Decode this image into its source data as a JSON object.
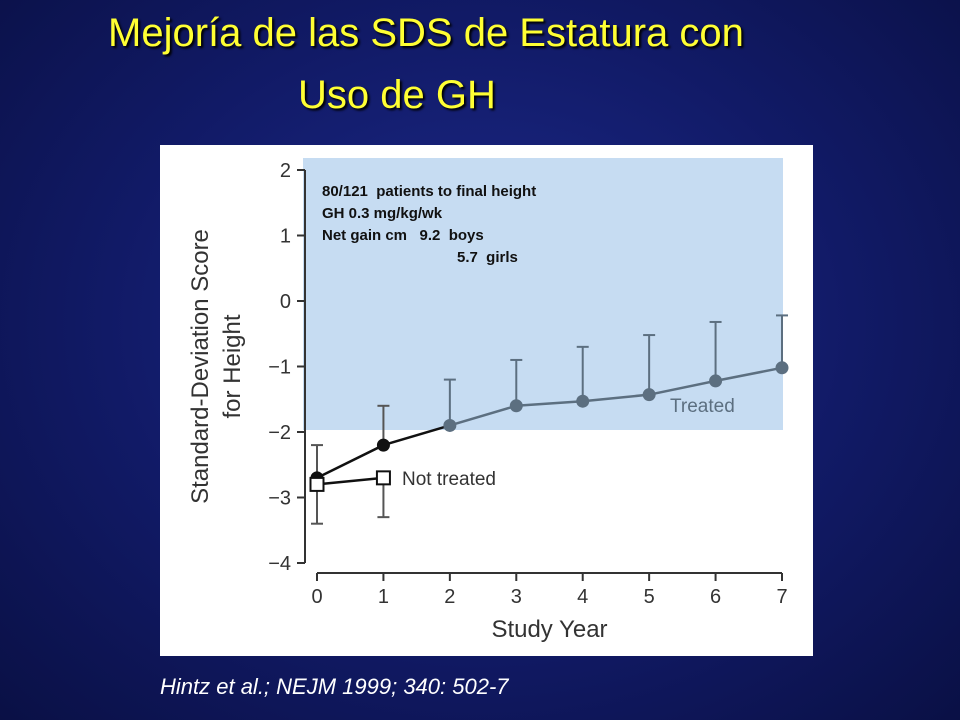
{
  "title": {
    "line1": "Mejoría de las SDS de Estatura con",
    "line2": "Uso de GH"
  },
  "note": {
    "line1": "80/121  patients to final height",
    "line2": "GH 0.3 mg/kg/wk",
    "line3": "Net gain cm   9.2  boys",
    "line4": "5.7  girls"
  },
  "citation": "Hintz et al.; NEJM 1999; 340: 502-7",
  "colors": {
    "background": "#111a66",
    "title": "#ffff33",
    "highlight": "#c6dcf2",
    "treated": "#5c6f80",
    "not_treated": "#000000"
  },
  "chart_data": {
    "type": "line",
    "xlabel": "Study Year",
    "ylabel_line1": "Standard-Deviation Score",
    "ylabel_line2": "for Height",
    "x_ticks": [
      "0",
      "1",
      "2",
      "3",
      "4",
      "5",
      "6",
      "7"
    ],
    "y_ticks": [
      "2",
      "1",
      "0",
      "−1",
      "−2",
      "−3",
      "−4"
    ],
    "xlim": [
      0,
      7
    ],
    "ylim": [
      -4,
      2
    ],
    "grid": false,
    "series": [
      {
        "name": "Treated",
        "marker": "filled-circle",
        "x": [
          0,
          1,
          2,
          3,
          4,
          5,
          6,
          7
        ],
        "y": [
          -2.7,
          -2.2,
          -1.9,
          -1.6,
          -1.53,
          -1.43,
          -1.22,
          -1.02
        ],
        "error_upper": [
          -2.2,
          -1.6,
          -1.2,
          -0.9,
          -0.7,
          -0.52,
          -0.32,
          -0.22
        ]
      },
      {
        "name": "Not treated",
        "marker": "open-square",
        "x": [
          0,
          1
        ],
        "y": [
          -2.8,
          -2.7
        ],
        "error_lower": [
          -3.4,
          -3.3
        ]
      }
    ]
  }
}
